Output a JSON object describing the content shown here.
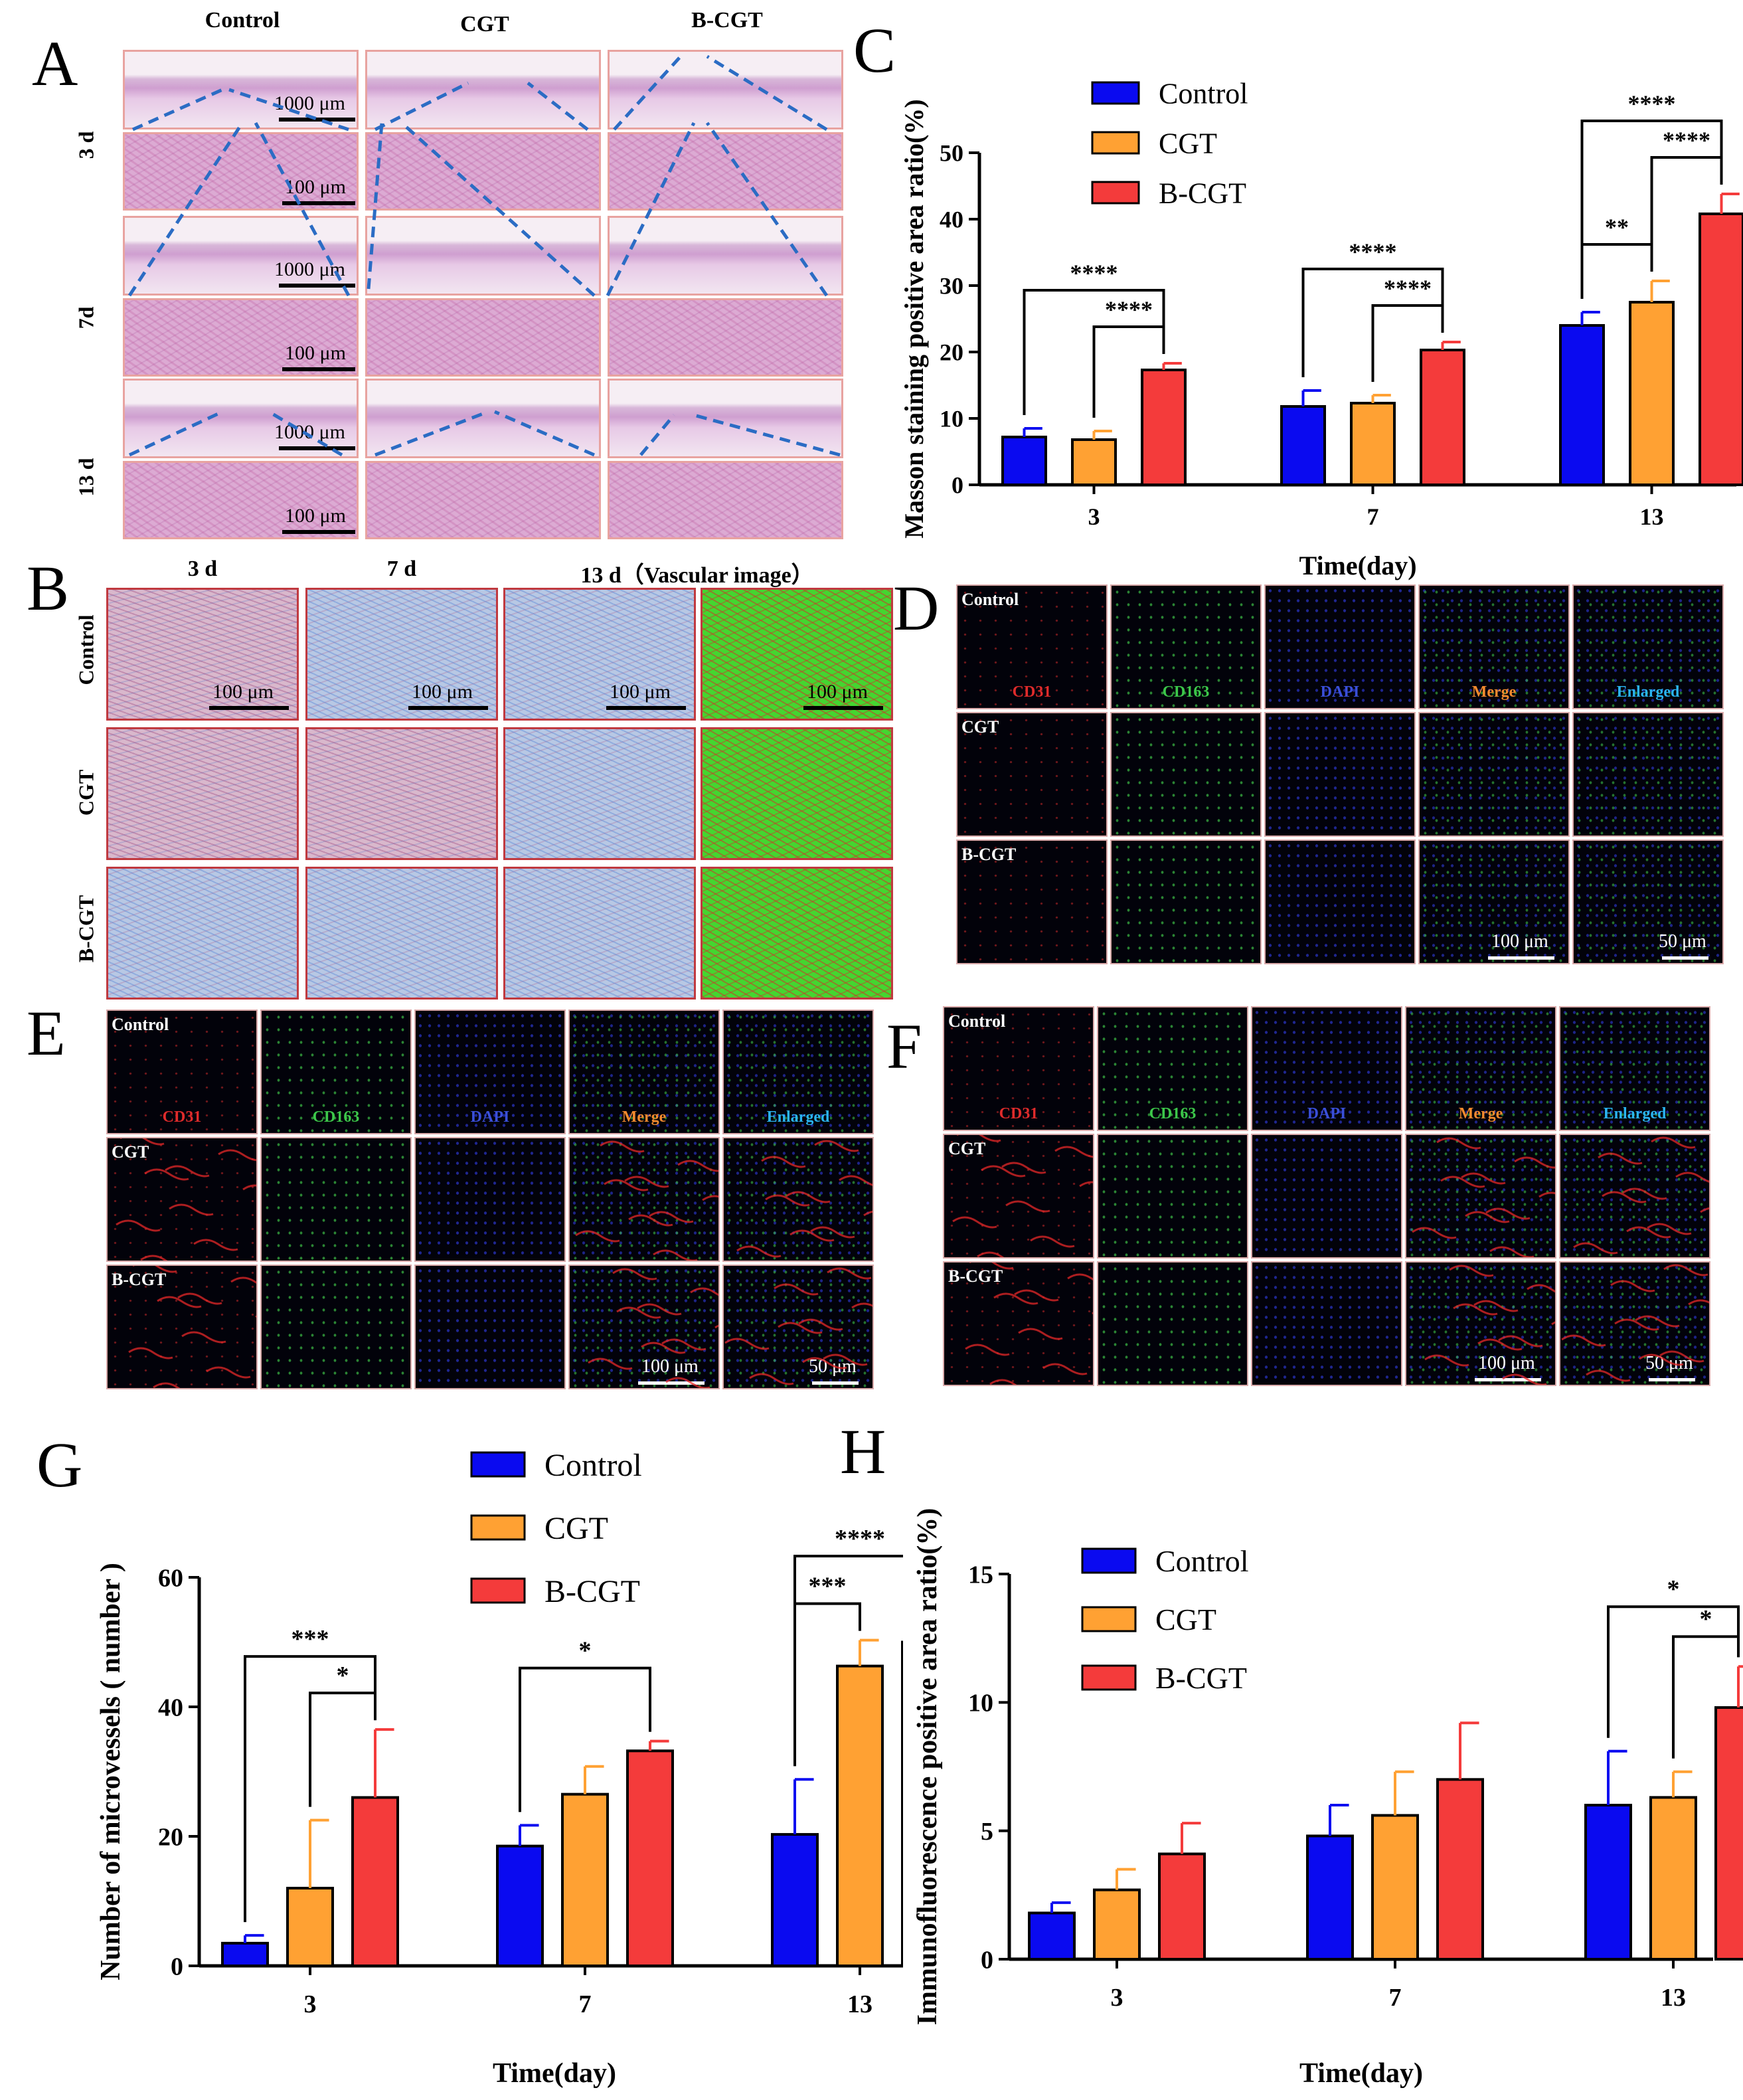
{
  "panels": {
    "A": "A",
    "B": "B",
    "C": "C",
    "D": "D",
    "E": "E",
    "F": "F",
    "G": "G",
    "H": "H"
  },
  "panel_a": {
    "columns": [
      "Control",
      "CGT",
      "B-CGT"
    ],
    "rows": [
      "3 d",
      "7d",
      "13 d"
    ],
    "scale_large": "1000 μm",
    "scale_small": "100 μm"
  },
  "panel_b": {
    "columns": [
      "3 d",
      "7 d",
      "13 d（Vascular image）"
    ],
    "rows": [
      "Control",
      "CGT",
      "B-CGT"
    ],
    "scale": "100 μm"
  },
  "fluor": {
    "rows": [
      "Control",
      "CGT",
      "B-CGT"
    ],
    "channels": [
      "CD31",
      "CD163",
      "DAPI",
      "Merge",
      "Enlarged"
    ],
    "channel_colors": [
      "#e02b2b",
      "#3cc84a",
      "#3a4fd8",
      "#f28a2e",
      "#2ab4f0"
    ],
    "scale_100": "100 μm",
    "scale_50": "50 μm"
  },
  "chart_data": [
    {
      "id": "C",
      "type": "bar",
      "title": "",
      "xlabel": "Time(day)",
      "ylabel": "Masson staining positive area ratio(%)",
      "categories": [
        "3",
        "7",
        "13"
      ],
      "ylim": [
        0,
        50
      ],
      "yticks": [
        0,
        10,
        20,
        30,
        40,
        50
      ],
      "series": [
        {
          "name": "Control",
          "color": "#0a0af0",
          "values": [
            7.2,
            11.8,
            24.0
          ],
          "errors": [
            1.3,
            2.4,
            2.0
          ]
        },
        {
          "name": "CGT",
          "color": "#ffa133",
          "values": [
            6.8,
            12.3,
            27.5
          ],
          "errors": [
            1.3,
            1.2,
            3.2
          ]
        },
        {
          "name": "B-CGT",
          "color": "#f43b3b",
          "values": [
            17.3,
            20.3,
            40.8
          ],
          "errors": [
            1.0,
            1.2,
            3.0
          ]
        }
      ],
      "significance": [
        {
          "group": 0,
          "from": 0,
          "to": 2,
          "label": "****"
        },
        {
          "group": 0,
          "from": 1,
          "to": 2,
          "label": "****"
        },
        {
          "group": 1,
          "from": 0,
          "to": 2,
          "label": "****"
        },
        {
          "group": 1,
          "from": 1,
          "to": 2,
          "label": "****"
        },
        {
          "group": 2,
          "from": 0,
          "to": 2,
          "label": "****"
        },
        {
          "group": 2,
          "from": 1,
          "to": 2,
          "label": "****"
        },
        {
          "group": 2,
          "from": 0,
          "to": 1,
          "label": "**"
        }
      ]
    },
    {
      "id": "G",
      "type": "bar",
      "title": "",
      "xlabel": "Time(day)",
      "ylabel": "Number of microvessels ( number )",
      "categories": [
        "3",
        "7",
        "13"
      ],
      "ylim": [
        0,
        60
      ],
      "yticks": [
        0,
        20,
        40,
        60
      ],
      "series": [
        {
          "name": "Control",
          "color": "#0a0af0",
          "values": [
            3.5,
            18.5,
            20.3
          ],
          "errors": [
            1.2,
            3.2,
            8.5
          ]
        },
        {
          "name": "CGT",
          "color": "#ffa133",
          "values": [
            12.0,
            26.5,
            46.3
          ],
          "errors": [
            10.5,
            4.3,
            4.0
          ]
        },
        {
          "name": "B-CGT",
          "color": "#f43b3b",
          "values": [
            26.0,
            33.2,
            50.0
          ],
          "errors": [
            10.5,
            1.5,
            2.0
          ]
        }
      ],
      "significance": [
        {
          "group": 0,
          "from": 0,
          "to": 2,
          "label": "***"
        },
        {
          "group": 0,
          "from": 1,
          "to": 2,
          "label": "*"
        },
        {
          "group": 1,
          "from": 0,
          "to": 2,
          "label": "*"
        },
        {
          "group": 2,
          "from": 0,
          "to": 2,
          "label": "****"
        },
        {
          "group": 2,
          "from": 0,
          "to": 1,
          "label": "***"
        }
      ]
    },
    {
      "id": "H",
      "type": "bar",
      "title": "",
      "xlabel": "Time(day)",
      "ylabel": "Immunofluorescence positive area ratio(%)",
      "categories": [
        "3",
        "7",
        "13"
      ],
      "ylim": [
        0,
        15
      ],
      "yticks": [
        0,
        5,
        10,
        15
      ],
      "series": [
        {
          "name": "Control",
          "color": "#0a0af0",
          "values": [
            1.8,
            4.8,
            6.0
          ],
          "errors": [
            0.4,
            1.2,
            2.1
          ]
        },
        {
          "name": "CGT",
          "color": "#ffa133",
          "values": [
            2.7,
            5.6,
            6.3
          ],
          "errors": [
            0.8,
            1.7,
            1.0
          ]
        },
        {
          "name": "B-CGT",
          "color": "#f43b3b",
          "values": [
            4.1,
            7.0,
            9.8
          ],
          "errors": [
            1.2,
            2.2,
            1.6
          ]
        }
      ],
      "significance": [
        {
          "group": 2,
          "from": 0,
          "to": 2,
          "label": "*"
        },
        {
          "group": 2,
          "from": 1,
          "to": 2,
          "label": "*"
        }
      ]
    }
  ]
}
